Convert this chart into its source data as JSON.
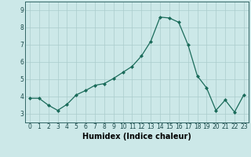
{
  "x": [
    0,
    1,
    2,
    3,
    4,
    5,
    6,
    7,
    8,
    9,
    10,
    11,
    12,
    13,
    14,
    15,
    16,
    17,
    18,
    19,
    20,
    21,
    22,
    23
  ],
  "y": [
    3.9,
    3.9,
    3.5,
    3.2,
    3.55,
    4.1,
    4.35,
    4.65,
    4.75,
    5.05,
    5.4,
    5.75,
    6.35,
    7.2,
    8.6,
    8.55,
    8.3,
    7.0,
    5.2,
    4.5,
    3.2,
    3.8,
    3.1,
    4.1
  ],
  "xlabel": "Humidex (Indice chaleur)",
  "ylim": [
    2.5,
    9.5
  ],
  "xlim": [
    -0.5,
    23.5
  ],
  "yticks": [
    3,
    4,
    5,
    6,
    7,
    8,
    9
  ],
  "xticks": [
    0,
    1,
    2,
    3,
    4,
    5,
    6,
    7,
    8,
    9,
    10,
    11,
    12,
    13,
    14,
    15,
    16,
    17,
    18,
    19,
    20,
    21,
    22,
    23
  ],
  "line_color": "#1a6b5a",
  "marker_color": "#1a6b5a",
  "bg_color": "#cce8e8",
  "grid_color": "#aacccc",
  "spine_color": "#336666",
  "xlabel_fontsize": 7,
  "tick_fontsize": 5.5,
  "ylabel_fontsize": 6
}
